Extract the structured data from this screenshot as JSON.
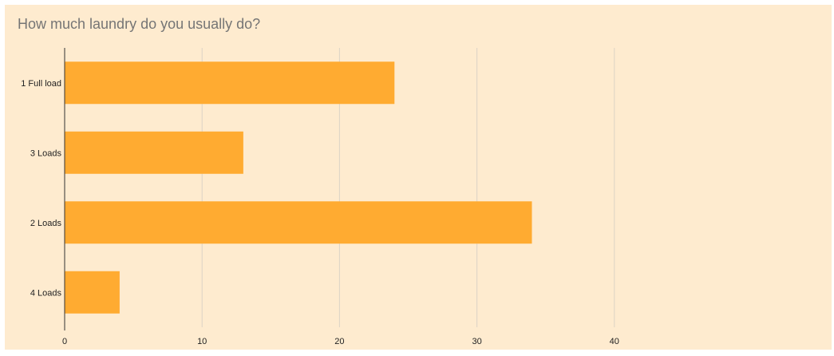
{
  "chart_data": {
    "type": "bar",
    "orientation": "horizontal",
    "title": "How much laundry do you usually do?",
    "categories": [
      "1 Full load",
      "3 Loads",
      "2 Loads",
      "4 Loads"
    ],
    "values": [
      24,
      13,
      34,
      4
    ],
    "xlim": [
      0,
      50
    ],
    "xticks": [
      0,
      10,
      20,
      30,
      40
    ],
    "xlabel": "",
    "ylabel": "",
    "grid": true,
    "legend": "none",
    "colors": {
      "bar": "#ffab31",
      "background": "#feebcf",
      "grid": "#dcd3c5",
      "axis": "#333333"
    }
  }
}
